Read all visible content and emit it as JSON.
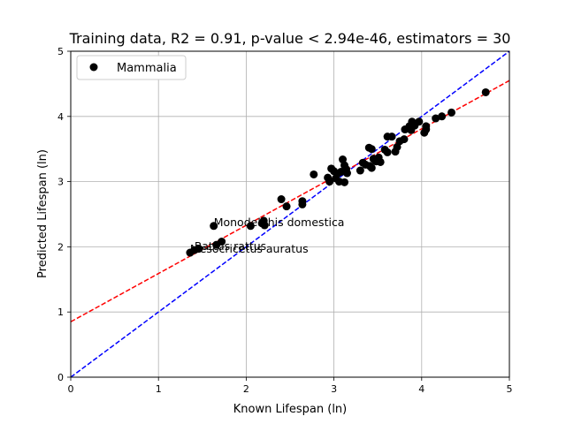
{
  "chart_data": {
    "type": "scatter",
    "title": "Training data, R2 = 0.91, p-value < 2.94e-46, estimators = 30",
    "xlabel": "Known Lifespan (ln)",
    "ylabel": "Predicted Lifespan (ln)",
    "xlim": [
      0,
      5
    ],
    "ylim": [
      0,
      5
    ],
    "xticks": [
      "0",
      "1",
      "2",
      "3",
      "4",
      "5"
    ],
    "yticks": [
      "0",
      "1",
      "2",
      "3",
      "4",
      "5"
    ],
    "grid": true,
    "legend": {
      "position": "top-left",
      "entries": [
        "Mammalia"
      ]
    },
    "series": [
      {
        "name": "Mammalia",
        "color": "#000000",
        "points": [
          [
            1.36,
            1.91
          ],
          [
            1.41,
            1.95
          ],
          [
            1.46,
            1.97
          ],
          [
            1.63,
            2.32
          ],
          [
            1.66,
            2.03
          ],
          [
            1.72,
            2.08
          ],
          [
            2.05,
            2.32
          ],
          [
            2.18,
            2.36
          ],
          [
            2.2,
            2.4
          ],
          [
            2.21,
            2.33
          ],
          [
            2.4,
            2.73
          ],
          [
            2.46,
            2.62
          ],
          [
            2.64,
            2.7
          ],
          [
            2.64,
            2.65
          ],
          [
            2.77,
            3.11
          ],
          [
            2.93,
            3.06
          ],
          [
            2.95,
            3.0
          ],
          [
            2.97,
            3.2
          ],
          [
            3.0,
            3.16
          ],
          [
            3.02,
            3.05
          ],
          [
            3.04,
            3.12
          ],
          [
            3.06,
            3.0
          ],
          [
            3.08,
            3.15
          ],
          [
            3.1,
            3.34
          ],
          [
            3.12,
            2.99
          ],
          [
            3.12,
            3.25
          ],
          [
            3.14,
            3.19
          ],
          [
            3.15,
            3.13
          ],
          [
            3.3,
            3.17
          ],
          [
            3.33,
            3.29
          ],
          [
            3.36,
            3.26
          ],
          [
            3.4,
            3.52
          ],
          [
            3.41,
            3.24
          ],
          [
            3.43,
            3.5
          ],
          [
            3.43,
            3.21
          ],
          [
            3.45,
            3.35
          ],
          [
            3.48,
            3.31
          ],
          [
            3.51,
            3.37
          ],
          [
            3.53,
            3.3
          ],
          [
            3.58,
            3.49
          ],
          [
            3.61,
            3.45
          ],
          [
            3.61,
            3.69
          ],
          [
            3.66,
            3.69
          ],
          [
            3.7,
            3.46
          ],
          [
            3.72,
            3.53
          ],
          [
            3.75,
            3.62
          ],
          [
            3.8,
            3.65
          ],
          [
            3.81,
            3.8
          ],
          [
            3.86,
            3.85
          ],
          [
            3.88,
            3.79
          ],
          [
            3.89,
            3.92
          ],
          [
            3.92,
            3.86
          ],
          [
            3.97,
            3.92
          ],
          [
            4.03,
            3.75
          ],
          [
            4.05,
            3.8
          ],
          [
            4.05,
            3.85
          ],
          [
            4.16,
            3.97
          ],
          [
            4.23,
            4.0
          ],
          [
            4.34,
            4.06
          ],
          [
            4.73,
            4.37
          ]
        ]
      }
    ],
    "reference_lines": [
      {
        "color": "#0000ff",
        "style": "dashed",
        "from": [
          0,
          0
        ],
        "to": [
          5,
          5
        ]
      },
      {
        "color": "#ff0000",
        "style": "dashed",
        "from": [
          0,
          0.85
        ],
        "to": [
          5,
          4.55
        ]
      }
    ],
    "annotations": [
      {
        "text": "Monodelphis domestica",
        "x": 1.63,
        "y": 2.32
      },
      {
        "text": "Rattus rattus",
        "x": 1.41,
        "y": 1.95
      },
      {
        "text": "Mesocricetus auratus",
        "x": 1.36,
        "y": 1.91
      }
    ]
  }
}
